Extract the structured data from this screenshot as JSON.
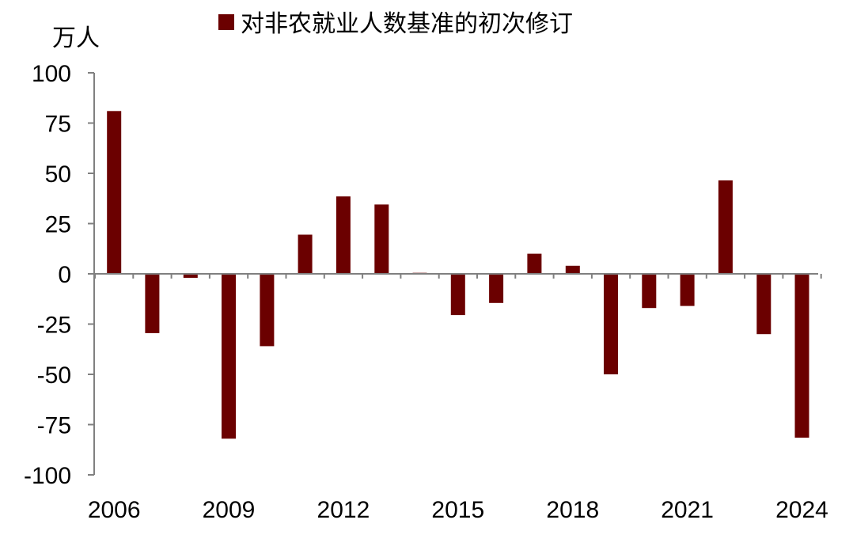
{
  "chart_data": {
    "type": "bar",
    "unit_label": "万人",
    "legend": {
      "placement": "top-center",
      "entries": [
        "对非农就业人数基准的初次修订"
      ]
    },
    "categories": [
      "2006",
      "2007",
      "2008",
      "2009",
      "2010",
      "2011",
      "2012",
      "2013",
      "2014",
      "2015",
      "2016",
      "2017",
      "2018",
      "2019",
      "2020",
      "2021",
      "2022",
      "2023",
      "2024"
    ],
    "x_tick_labels": [
      "2006",
      "2009",
      "2012",
      "2015",
      "2018",
      "2021",
      "2024"
    ],
    "series": [
      {
        "name": "对非农就业人数基准的初次修订",
        "color": "#6b0000",
        "values": [
          81,
          -29.5,
          -2,
          -82,
          -36,
          19.5,
          38.5,
          34.5,
          0.5,
          -20.5,
          -14.5,
          10,
          4,
          -50,
          -17,
          -16,
          46.5,
          -30,
          -81.5
        ]
      }
    ],
    "ylim": [
      -100,
      100
    ],
    "y_ticks": [
      100,
      75,
      50,
      25,
      0,
      -25,
      -50,
      -75,
      -100
    ],
    "grid": false
  }
}
